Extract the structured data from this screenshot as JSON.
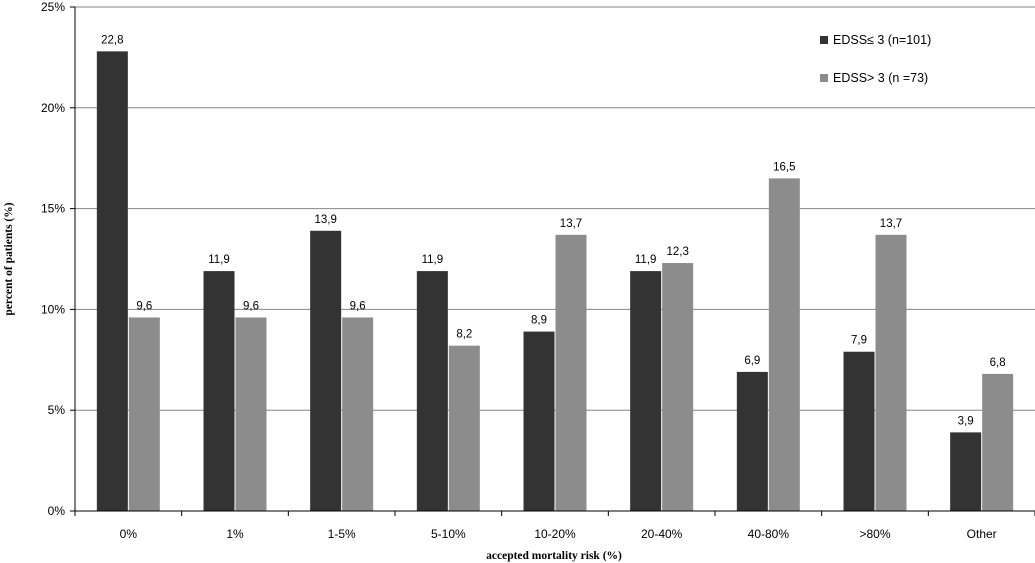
{
  "chart_data": {
    "type": "bar",
    "categories": [
      "0%",
      "1%",
      "1-5%",
      "5-10%",
      "10-20%",
      "20-40%",
      "40-80%",
      ">80%",
      "Other"
    ],
    "series": [
      {
        "name": "EDSS≤ 3  (n=101)",
        "color": "#333333",
        "values": [
          22.8,
          11.9,
          13.9,
          11.9,
          8.9,
          11.9,
          6.9,
          7.9,
          3.9
        ],
        "labels": [
          "22,8",
          "11,9",
          "13,9",
          "11,9",
          "8,9",
          "11,9",
          "6,9",
          "7,9",
          "3,9"
        ]
      },
      {
        "name": "EDSS> 3  (n =73)",
        "color": "#8c8c8c",
        "values": [
          9.6,
          9.6,
          9.6,
          8.2,
          13.7,
          12.3,
          16.5,
          13.7,
          6.8
        ],
        "labels": [
          "9,6",
          "9,6",
          "9,6",
          "8,2",
          "13,7",
          "12,3",
          "16,5",
          "13,7",
          "6,8"
        ]
      }
    ],
    "xlabel": "accepted mortality risk (%)",
    "ylabel": "percent of patients (%)",
    "ylim": [
      0,
      25
    ],
    "yticks": [
      0,
      5,
      10,
      15,
      20,
      25
    ],
    "ytick_labels": [
      "0%",
      "5%",
      "10%",
      "15%",
      "20%",
      "25%"
    ],
    "grid": true,
    "legend_position": "top-right"
  }
}
